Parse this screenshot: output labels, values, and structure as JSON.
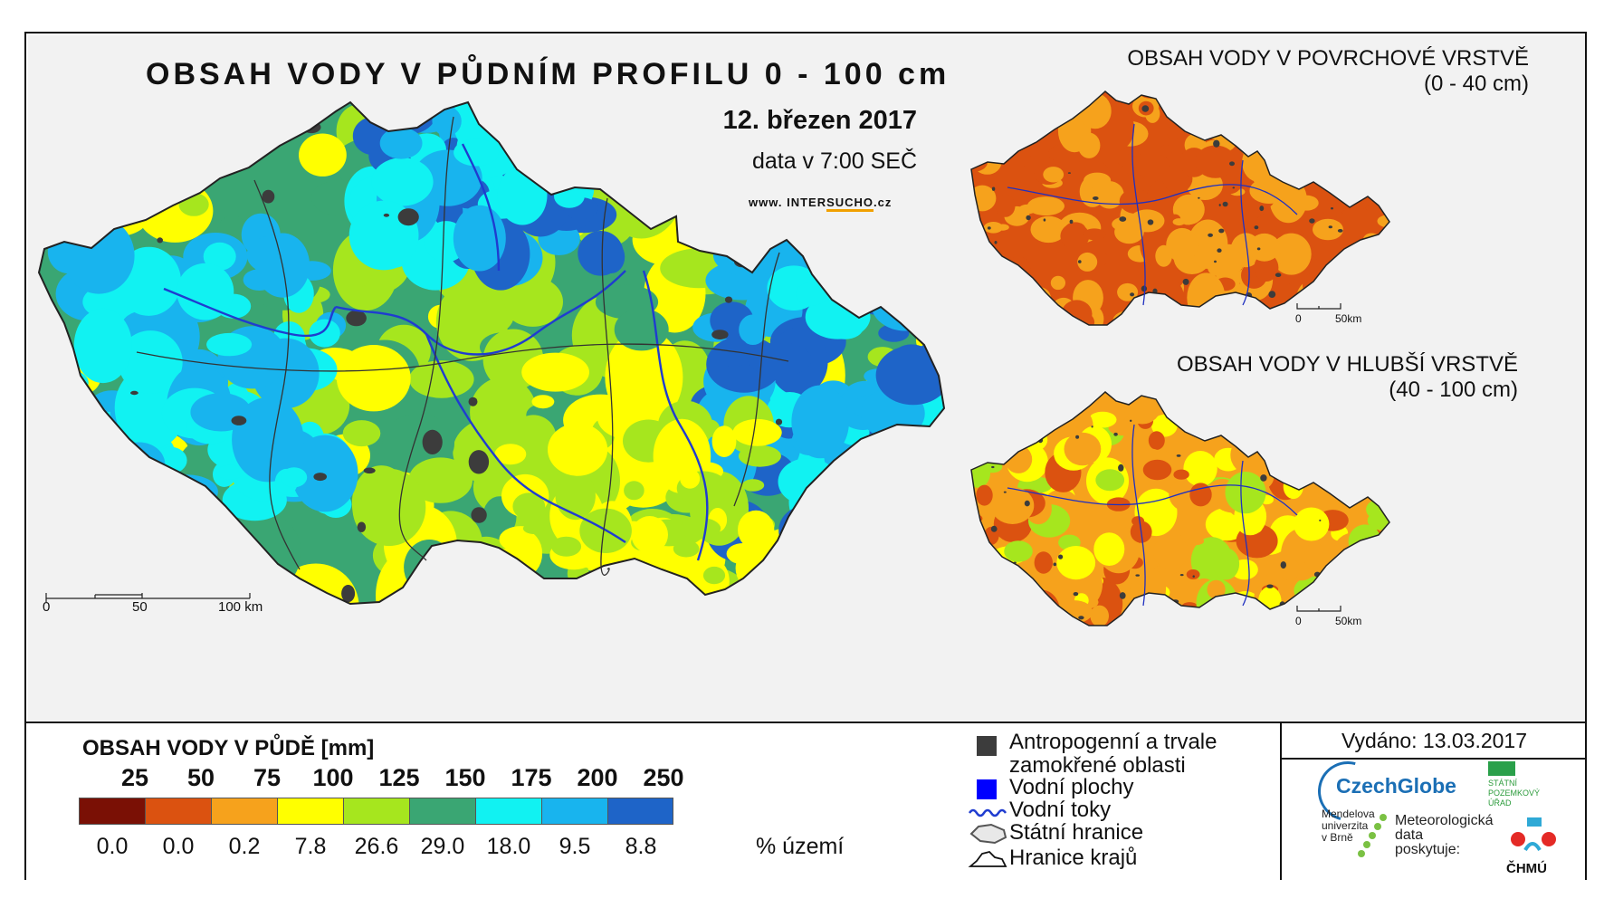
{
  "main_map": {
    "title": "OBSAH VODY V PŮDNÍM PROFILU 0 - 100 cm",
    "date": "12. březen 2017",
    "time": "data v 7:00 SEČ",
    "website_prefix": "www. INTER",
    "website_highlight": "SUCHO",
    "website_suffix": ".cz",
    "scale": {
      "zero": "0",
      "mid": "50",
      "end": "100 km"
    }
  },
  "surface_map": {
    "title": "OBSAH VODY V POVRCHOVÉ VRSTVĚ",
    "subtitle": "(0 - 40 cm)",
    "scale": {
      "zero": "0",
      "end": "50km"
    }
  },
  "deep_map": {
    "title": "OBSAH VODY V HLUBŠÍ VRSTVĚ",
    "subtitle": "(40 - 100 cm)",
    "scale": {
      "zero": "0",
      "end": "50km"
    }
  },
  "legend": {
    "title": "OBSAH VODY V PŮDĚ [mm]",
    "thresholds": [
      "25",
      "50",
      "75",
      "100",
      "125",
      "150",
      "175",
      "200",
      "250"
    ],
    "classes": [
      {
        "color": "#7a1005",
        "percent": "0.0"
      },
      {
        "color": "#db5210",
        "percent": "0.0"
      },
      {
        "color": "#f6a21c",
        "percent": "0.2"
      },
      {
        "color": "#ffff00",
        "percent": "7.8"
      },
      {
        "color": "#a6e61e",
        "percent": "26.6"
      },
      {
        "color": "#3aa673",
        "percent": "29.0"
      },
      {
        "color": "#11f2f2",
        "percent": "18.0"
      },
      {
        "color": "#18b4ee",
        "percent": "9.5"
      },
      {
        "color": "#1e64c8",
        "percent": "8.8"
      }
    ],
    "unit": "% území"
  },
  "symbols": {
    "anthropogenic_1": "Antropogenní a trvale",
    "anthropogenic_2": "zamokřené oblasti",
    "water_bodies": "Vodní plochy",
    "rivers": "Vodní toky",
    "state_border": "Státní hranice",
    "region_border": "Hranice krajů"
  },
  "credits": {
    "issued": "Vydáno: 13.03.2017",
    "czechglobe": "CzechGlobe",
    "spu_1": "STÁTNÍ",
    "spu_2": "POZEMKOVÝ",
    "spu_3": "ÚŘAD",
    "mendel_1": "Mendelova",
    "mendel_2": "univerzita",
    "mendel_3": "v Brně",
    "meteo_1": "Meteorologická",
    "meteo_2": "data",
    "meteo_3": "poskytuje:",
    "chmu": "ČHMÚ"
  },
  "colors": {
    "dark_red": "#7a1005",
    "orange_red": "#db5210",
    "orange": "#f6a21c",
    "yellow": "#ffff00",
    "light_green": "#a6e61e",
    "green": "#3aa673",
    "cyan": "#11f2f2",
    "light_blue": "#18b4ee",
    "blue": "#1e64c8",
    "anthropogenic": "#3c3c3c",
    "water": "#0000ff"
  }
}
